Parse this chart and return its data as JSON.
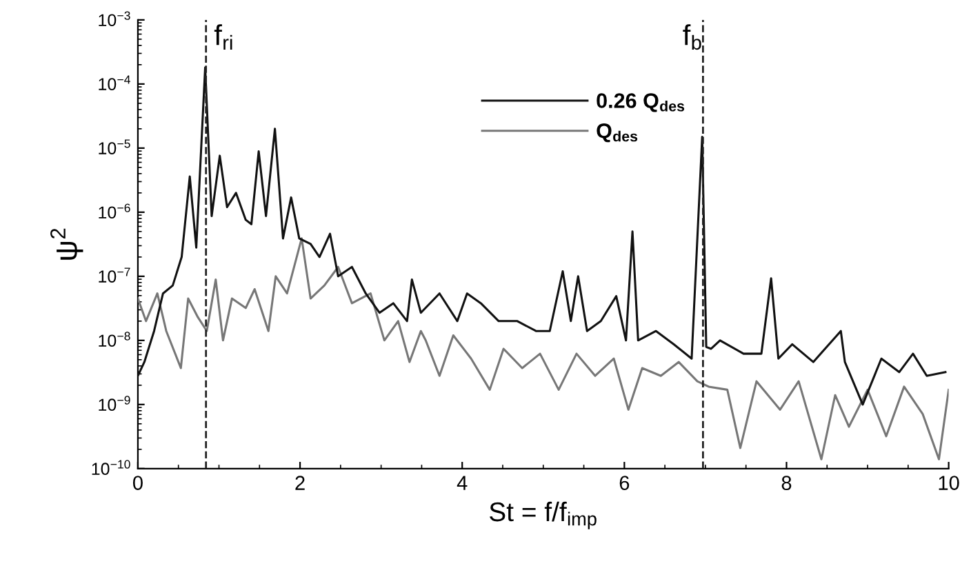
{
  "chart_data": {
    "type": "line",
    "xlabel": "St = f/f$_{imp}$",
    "ylabel": "ψ$^{2}$",
    "log": "y",
    "grid": false,
    "legend": "top",
    "marker": "none",
    "line_style": "solid",
    "xlim": [
      0,
      10
    ],
    "xticks": [
      0,
      2,
      4,
      6,
      8,
      10
    ],
    "ylim": [
      1e-10,
      0.001
    ],
    "yticks": [
      {
        "value": 1e-10,
        "label": "10$^{−10}$"
      },
      {
        "value": 1e-09,
        "label": "10$^{−9}$"
      },
      {
        "value": 1e-08,
        "label": "10$^{−8}$"
      },
      {
        "value": 1e-07,
        "label": "10$^{−7}$"
      },
      {
        "value": 1e-06,
        "label": "10$^{−6}$"
      },
      {
        "value": 1e-05,
        "label": "10$^{−5}$"
      },
      {
        "value": 0.0001,
        "label": "10$^{−4}$"
      },
      {
        "value": 0.001,
        "label": "10$^{−3}$"
      }
    ],
    "ref_lines": [
      {
        "axis": "x",
        "value": 0.84,
        "label": "f$_{ri}$",
        "color": "#222222",
        "line_style": "dashed"
      },
      {
        "axis": "x",
        "value": 6.97,
        "label": "f$_{b}$",
        "color": "#222222",
        "line_style": "dashed"
      }
    ],
    "series": [
      {
        "name": "0.26 Q$_{des}$",
        "color": "#111111",
        "x": [
          0,
          0.08,
          0.2,
          0.31,
          0.43,
          0.54,
          0.64,
          0.72,
          0.83,
          0.91,
          1.01,
          1.1,
          1.21,
          1.33,
          1.4,
          1.49,
          1.58,
          1.69,
          1.79,
          1.89,
          1.99,
          2.13,
          2.24,
          2.37,
          2.47,
          2.64,
          2.81,
          2.98,
          3.15,
          3.32,
          3.38,
          3.49,
          3.72,
          3.94,
          4.06,
          4.23,
          4.45,
          4.68,
          4.91,
          5.08,
          5.24,
          5.34,
          5.43,
          5.54,
          5.71,
          5.9,
          6.02,
          6.1,
          6.17,
          6.39,
          6.61,
          6.83,
          6.96,
          7.01,
          7.07,
          7.18,
          7.47,
          7.69,
          7.81,
          7.9,
          8.07,
          8.33,
          8.67,
          8.72,
          8.94,
          9.17,
          9.39,
          9.56,
          9.73,
          9.96
        ],
        "values": [
          2.8e-09,
          4.6e-09,
          1.4e-08,
          5.4e-08,
          7.2e-08,
          2e-07,
          3.6e-06,
          2.8e-07,
          0.00018,
          8.7e-07,
          7.6e-06,
          1.2e-06,
          2e-06,
          7.6e-07,
          6.5e-07,
          8.9e-06,
          8.7e-07,
          2e-05,
          3.9e-07,
          1.7e-06,
          3.9e-07,
          3.2e-07,
          2e-07,
          4.6e-07,
          1e-07,
          1.4e-07,
          5.4e-08,
          2.7e-08,
          3.8e-08,
          2e-08,
          8.9e-08,
          2.7e-08,
          5.4e-08,
          2e-08,
          5.4e-08,
          3.8e-08,
          2e-08,
          2e-08,
          1.4e-08,
          1.4e-08,
          1.2e-07,
          2e-08,
          1e-07,
          1.4e-08,
          2e-08,
          4.9e-08,
          1e-08,
          5e-07,
          1e-08,
          1.4e-08,
          8.7e-09,
          5.2e-09,
          1.5e-05,
          7.9e-09,
          7.4e-09,
          1e-08,
          6.2e-09,
          6.2e-09,
          9.3e-08,
          5.2e-09,
          8.7e-09,
          4.6e-09,
          1.4e-08,
          4.6e-09,
          1e-09,
          5.2e-09,
          3.2e-09,
          6.2e-09,
          2.8e-09,
          3.2e-09
        ]
      },
      {
        "name": "Q$_{des}$",
        "color": "#777777",
        "x": [
          0,
          0.1,
          0.24,
          0.35,
          0.53,
          0.62,
          0.74,
          0.85,
          0.96,
          1.05,
          1.16,
          1.33,
          1.44,
          1.61,
          1.7,
          1.84,
          2.02,
          2.13,
          2.3,
          2.47,
          2.64,
          2.87,
          3.04,
          3.21,
          3.35,
          3.49,
          3.55,
          3.72,
          3.89,
          4.11,
          4.34,
          4.51,
          4.74,
          4.96,
          5.19,
          5.41,
          5.64,
          5.87,
          6.05,
          6.22,
          6.45,
          6.67,
          6.9,
          7.04,
          7.27,
          7.43,
          7.63,
          7.92,
          8.15,
          8.43,
          8.6,
          8.77,
          9.0,
          9.23,
          9.45,
          9.68,
          9.88,
          10.0
        ],
        "values": [
          4.5e-08,
          2e-08,
          5.4e-08,
          1.4e-08,
          3.7e-09,
          4.5e-08,
          2.3e-08,
          1.4e-08,
          8.9e-08,
          1e-08,
          4.5e-08,
          3.2e-08,
          6.3e-08,
          1.4e-08,
          1e-07,
          5.4e-08,
          3.9e-07,
          4.5e-08,
          7.2e-08,
          1.4e-07,
          3.8e-08,
          5.4e-08,
          1e-08,
          2e-08,
          4.6e-09,
          1.4e-08,
          1e-08,
          2.8e-09,
          1.2e-08,
          5.2e-09,
          1.7e-09,
          7.4e-09,
          3.7e-09,
          6.2e-09,
          1.7e-09,
          6.2e-09,
          2.8e-09,
          5.2e-09,
          8.3e-10,
          3.7e-09,
          2.8e-09,
          4.6e-09,
          2.3e-09,
          1.9e-09,
          1.7e-09,
          2.1e-10,
          2.3e-09,
          8.3e-10,
          2.3e-09,
          1.4e-10,
          1.4e-09,
          4.5e-10,
          1.7e-09,
          3.2e-10,
          1.9e-09,
          7.1e-10,
          1.4e-10,
          1.7e-09
        ]
      }
    ]
  }
}
